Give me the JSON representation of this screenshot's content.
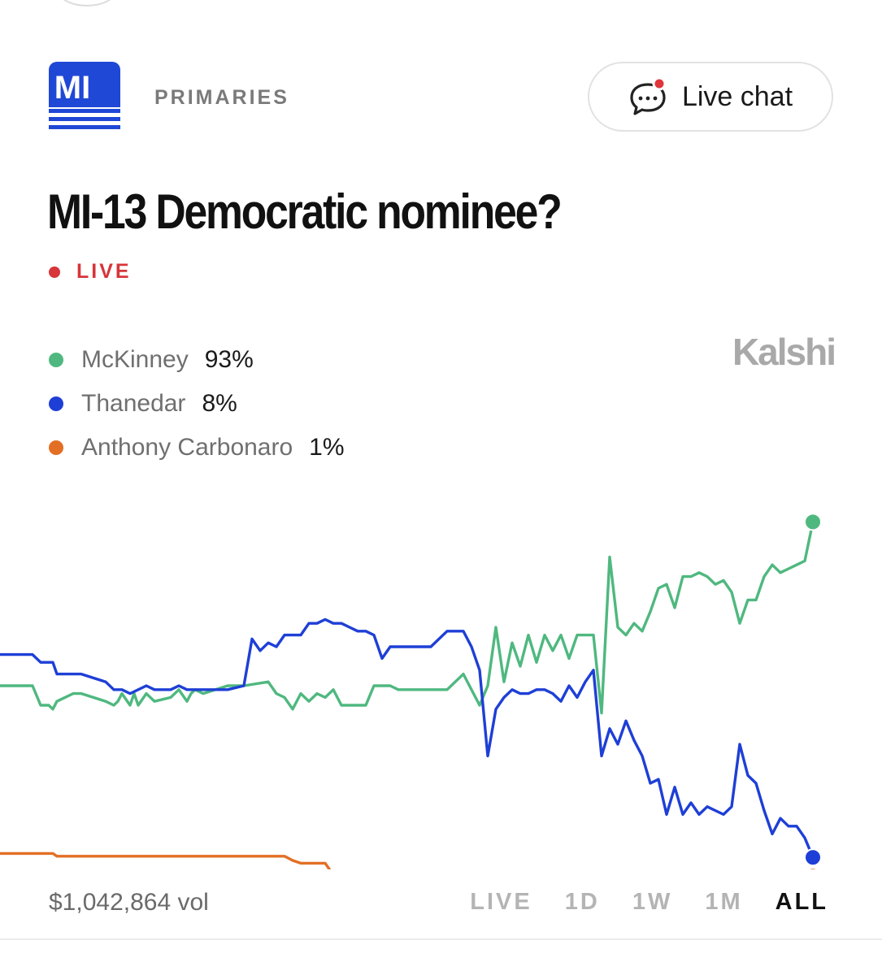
{
  "header": {
    "logo_text": "MI",
    "category": "PRIMARIES",
    "live_chat_label": "Live chat"
  },
  "market": {
    "title": "MI-13 Democratic nominee?",
    "status": "LIVE",
    "brand": "Kalshi"
  },
  "colors": {
    "green": "#4fb87f",
    "blue": "#1e3fd6",
    "orange": "#e36f25",
    "live_red": "#d6353a",
    "logo_blue": "#1f48d6"
  },
  "legend": [
    {
      "name": "McKinney",
      "value": "93%",
      "color": "#4fb87f"
    },
    {
      "name": "Thanedar",
      "value": "8%",
      "color": "#1e3fd6"
    },
    {
      "name": "Anthony Carbonaro",
      "value": "1%",
      "color": "#e36f25"
    }
  ],
  "chart_data": {
    "type": "line",
    "x_range": [
      0,
      100
    ],
    "y_range": [
      0,
      100
    ],
    "series": [
      {
        "name": "McKinney",
        "color": "#4fb87f",
        "x": [
          0,
          4,
          5,
          6,
          6.5,
          7,
          9,
          10,
          13,
          14,
          14.5,
          15,
          16,
          16.5,
          17,
          18,
          19,
          21,
          22,
          23,
          23.5,
          24,
          25,
          28,
          30,
          33,
          34,
          35,
          36,
          37,
          38,
          39,
          40,
          41,
          42,
          43,
          44,
          45,
          46,
          48,
          49,
          55,
          57,
          59,
          60,
          61,
          62,
          63,
          64,
          65,
          66,
          67,
          68,
          69,
          70,
          71,
          72,
          73,
          74,
          75,
          76,
          77,
          78,
          79,
          80,
          81,
          82,
          83,
          84,
          85,
          86,
          87,
          88,
          89,
          90,
          91,
          92,
          93,
          94,
          95,
          96,
          97,
          98,
          99,
          100
        ],
        "y": [
          45,
          45,
          40,
          40,
          39,
          41,
          43,
          43,
          41,
          40,
          41,
          43,
          40,
          43,
          40,
          43,
          41,
          42,
          44,
          41,
          43,
          44,
          43,
          45,
          45,
          46,
          43,
          42,
          39,
          43,
          41,
          43,
          42,
          44,
          40,
          40,
          40,
          40,
          45,
          45,
          44,
          44,
          48,
          40,
          45,
          60,
          46,
          56,
          50,
          58,
          51,
          58,
          54,
          58,
          52,
          58,
          58,
          58,
          38,
          78,
          60,
          58,
          61,
          59,
          64,
          70,
          71,
          65,
          73,
          73,
          74,
          73,
          71,
          72,
          69,
          61,
          67,
          67,
          73,
          76,
          74,
          75,
          76,
          77,
          87
        ]
      },
      {
        "name": "Thanedar",
        "color": "#1e3fd6",
        "x": [
          0,
          4,
          5,
          6.5,
          7,
          10,
          13,
          14,
          15,
          16,
          18,
          19,
          21,
          22,
          23,
          25,
          28,
          30,
          31,
          32,
          33,
          34,
          35,
          36,
          37,
          38,
          39,
          40,
          41,
          42,
          43,
          44,
          45,
          46,
          47,
          48,
          49,
          50,
          53,
          55,
          57,
          58,
          59,
          60,
          61,
          62,
          63,
          64,
          65,
          66,
          67,
          68,
          69,
          70,
          71,
          72,
          73,
          74,
          75,
          76,
          77,
          78,
          79,
          80,
          81,
          82,
          83,
          84,
          85,
          86,
          87,
          88,
          89,
          90,
          91,
          92,
          93,
          94,
          95,
          96,
          97,
          98,
          99,
          100
        ],
        "y": [
          53,
          53,
          51,
          51,
          48,
          48,
          46,
          44,
          44,
          43,
          45,
          44,
          44,
          45,
          44,
          44,
          44,
          45,
          57,
          54,
          56,
          55,
          58,
          58,
          58,
          61,
          61,
          62,
          61,
          61,
          60,
          59,
          59,
          58,
          52,
          55,
          55,
          55,
          55,
          59,
          59,
          55,
          49,
          27,
          39,
          42,
          44,
          43,
          43,
          44,
          44,
          43,
          41,
          45,
          42,
          46,
          49,
          27,
          34,
          30,
          36,
          31,
          27,
          20,
          21,
          12,
          19,
          12,
          15,
          12,
          14,
          13,
          12,
          14,
          30,
          22,
          20,
          13,
          7,
          11,
          9,
          9,
          6,
          1
        ]
      },
      {
        "name": "Anthony Carbonaro",
        "color": "#e36f25",
        "x": [
          0,
          6.5,
          7,
          35,
          36,
          37,
          40,
          41,
          75,
          76,
          80,
          81,
          82,
          83,
          84,
          85,
          86,
          87,
          88,
          89,
          90,
          91,
          92,
          93,
          94,
          95,
          96,
          97,
          98,
          99,
          100
        ],
        "y": [
          2,
          2,
          1.3,
          1.3,
          0.2,
          -0.5,
          -0.5,
          -3.5,
          -3.5,
          -4.3,
          -4.3,
          -3.5,
          -3.5,
          -4.3,
          -3.5,
          -4.3,
          -4.3,
          -4.3,
          -4.3,
          -4.3,
          -4.3,
          -3.5,
          -3.7,
          -4.3,
          -3.5,
          -4.3,
          -4.3,
          -4.3,
          -4.3,
          -4.3,
          -3.8
        ]
      }
    ]
  },
  "footer": {
    "volume": "$1,042,864 vol",
    "ranges": [
      "LIVE",
      "1D",
      "1W",
      "1M",
      "ALL"
    ],
    "active_range": "ALL"
  }
}
